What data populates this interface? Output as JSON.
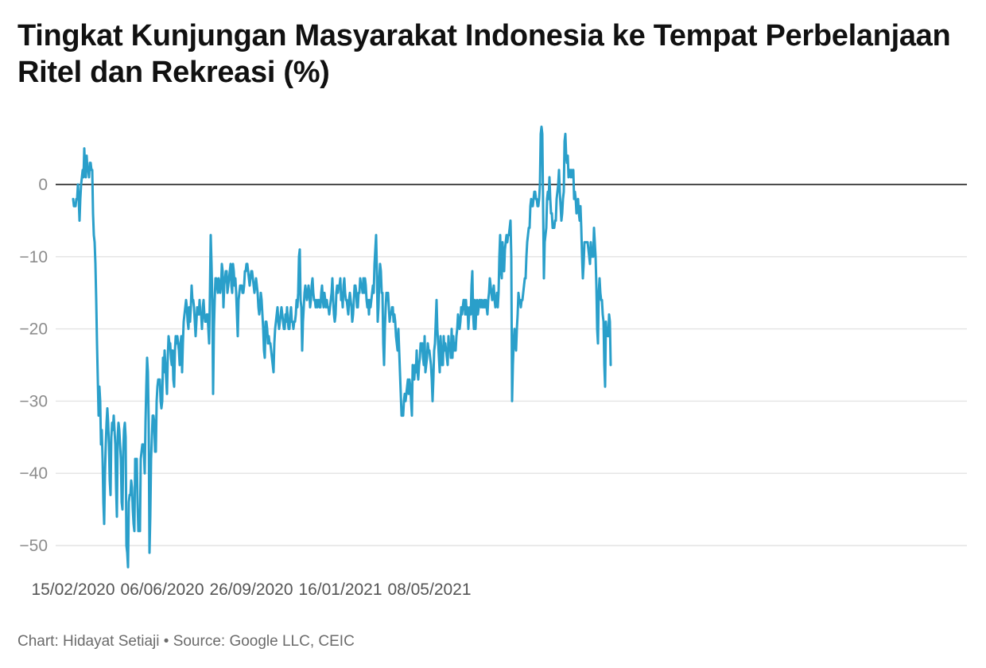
{
  "chart_data": {
    "type": "line",
    "title": "Tingkat Kunjungan Masyarakat Indonesia ke Tempat Perbelanjaan Ritel dan Rekreasi (%)",
    "start_date": "2020-02-15",
    "ylim": [
      -53,
      8
    ],
    "y_ticks": [
      0,
      -10,
      -20,
      -30,
      -40,
      -50
    ],
    "y_tick_labels": [
      "0",
      "−10",
      "−20",
      "−30",
      "−40",
      "−50"
    ],
    "x_tick_labels": [
      "15/02/2020",
      "06/06/2020",
      "26/09/2020",
      "16/01/2021",
      "08/05/2021"
    ],
    "x_tick_days": [
      0,
      112,
      224,
      336,
      448
    ],
    "grid": true,
    "color": "#2a9fca",
    "series": [
      {
        "values": [
          -2,
          -3,
          -3,
          -3,
          -2,
          -2,
          0,
          -2,
          -5,
          -2,
          0,
          1,
          2,
          1,
          5,
          2,
          1,
          4,
          2,
          2,
          1,
          3,
          3,
          2,
          2,
          -4,
          -7,
          -8,
          -11,
          -16,
          -22,
          -27,
          -32,
          -28,
          -30,
          -36,
          -34,
          -38,
          -44,
          -47,
          -40,
          -36,
          -33,
          -31,
          -33,
          -36,
          -41,
          -43,
          -35,
          -33,
          -34,
          -32,
          -34,
          -36,
          -42,
          -46,
          -35,
          -33,
          -34,
          -36,
          -38,
          -44,
          -45,
          -37,
          -34,
          -33,
          -35,
          -50,
          -51,
          -53,
          -44,
          -43,
          -43,
          -41,
          -42,
          -45,
          -47,
          -48,
          -38,
          -39,
          -38,
          -44,
          -48,
          -47,
          -48,
          -38,
          -37,
          -36,
          -36,
          -37,
          -40,
          -33,
          -28,
          -24,
          -26,
          -33,
          -51,
          -46,
          -38,
          -35,
          -32,
          -32,
          -33,
          -37,
          -37,
          -30,
          -28,
          -27,
          -27,
          -27,
          -30,
          -31,
          -30,
          -24,
          -26,
          -23,
          -25,
          -27,
          -29,
          -24,
          -21,
          -22,
          -22,
          -24,
          -25,
          -23,
          -27,
          -28,
          -23,
          -21,
          -22,
          -21,
          -22,
          -23,
          -25,
          -22,
          -21,
          -26,
          -22,
          -19,
          -18,
          -17,
          -16,
          -17,
          -19,
          -20,
          -17,
          -19,
          -17,
          -14,
          -16,
          -16,
          -17,
          -19,
          -21,
          -19,
          -17,
          -18,
          -18,
          -16,
          -18,
          -18,
          -20,
          -17,
          -16,
          -18,
          -19,
          -19,
          -18,
          -18,
          -20,
          -22,
          -15,
          -7,
          -11,
          -16,
          -29,
          -20,
          -16,
          -13,
          -13,
          -14,
          -15,
          -13,
          -14,
          -15,
          -14,
          -11,
          -12,
          -17,
          -14,
          -13,
          -12,
          -12,
          -15,
          -14,
          -13,
          -12,
          -11,
          -14,
          -15,
          -11,
          -12,
          -14,
          -13,
          -15,
          -18,
          -21,
          -16,
          -15,
          -14,
          -14,
          -14,
          -15,
          -15,
          -14,
          -12,
          -12,
          -11,
          -11,
          -12,
          -13,
          -14,
          -13,
          -12,
          -12,
          -13,
          -14,
          -15,
          -14,
          -13,
          -14,
          -15,
          -17,
          -18,
          -17,
          -15,
          -16,
          -18,
          -20,
          -23,
          -24,
          -19,
          -19,
          -20,
          -22,
          -21,
          -22,
          -22,
          -23,
          -24,
          -25,
          -26,
          -22,
          -20,
          -19,
          -18,
          -17,
          -19,
          -20,
          -19,
          -18,
          -17,
          -18,
          -19,
          -20,
          -20,
          -18,
          -19,
          -17,
          -19,
          -20,
          -20,
          -18,
          -17,
          -19,
          -19,
          -20,
          -19,
          -19,
          -18,
          -16,
          -17,
          -15,
          -10,
          -9,
          -16,
          -17,
          -23,
          -19,
          -17,
          -15,
          -14,
          -15,
          -16,
          -15,
          -14,
          -15,
          -17,
          -16,
          -14,
          -13,
          -15,
          -16,
          -16,
          -17,
          -16,
          -17,
          -16,
          -16,
          -17,
          -17,
          -15,
          -14,
          -16,
          -17,
          -15,
          -16,
          -17,
          -16,
          -17,
          -17,
          -18,
          -17,
          -16,
          -15,
          -13,
          -16,
          -18,
          -19,
          -18,
          -15,
          -14,
          -15,
          -14,
          -14,
          -13,
          -16,
          -15,
          -17,
          -14,
          -13,
          -15,
          -16,
          -16,
          -17,
          -18,
          -16,
          -15,
          -16,
          -17,
          -19,
          -18,
          -16,
          -14,
          -14,
          -15,
          -17,
          -17,
          -15,
          -15,
          -13,
          -14,
          -14,
          -15,
          -13,
          -15,
          -13,
          -14,
          -16,
          -17,
          -16,
          -18,
          -16,
          -17,
          -16,
          -15,
          -14,
          -15,
          -11,
          -9,
          -7,
          -12,
          -19,
          -17,
          -13,
          -11,
          -12,
          -15,
          -15,
          -22,
          -25,
          -20,
          -17,
          -15,
          -16,
          -15,
          -17,
          -19,
          -18,
          -18,
          -17,
          -17,
          -19,
          -18,
          -19,
          -21,
          -22,
          -23,
          -20,
          -23,
          -26,
          -29,
          -32,
          -32,
          -32,
          -30,
          -29,
          -30,
          -29,
          -28,
          -27,
          -29,
          -27,
          -28,
          -30,
          -32,
          -25,
          -26,
          -27,
          -25,
          -26,
          -23,
          -26,
          -27,
          -25,
          -24,
          -22,
          -23,
          -22,
          -24,
          -25,
          -21,
          -26,
          -25,
          -24,
          -22,
          -23,
          -23,
          -24,
          -25,
          -27,
          -30,
          -27,
          -23,
          -22,
          -19,
          -16,
          -20,
          -22,
          -24,
          -26,
          -21,
          -23,
          -25,
          -25,
          -21,
          -23,
          -22,
          -23,
          -24,
          -25,
          -21,
          -23,
          -22,
          -24,
          -20,
          -24,
          -21,
          -23,
          -22,
          -23,
          -21,
          -20,
          -18,
          -19,
          -20,
          -19,
          -17,
          -18,
          -17,
          -16,
          -16,
          -18,
          -16,
          -18,
          -17,
          -20,
          -18,
          -17,
          -18,
          -14,
          -12,
          -18,
          -20,
          -16,
          -20,
          -17,
          -16,
          -18,
          -17,
          -16,
          -16,
          -17,
          -16,
          -17,
          -17,
          -16,
          -17,
          -16,
          -17,
          -18,
          -16,
          -15,
          -13,
          -14,
          -15,
          -16,
          -15,
          -14,
          -16,
          -17,
          -16,
          -15,
          -17,
          -15,
          -10,
          -7,
          -12,
          -13,
          -8,
          -10,
          -12,
          -9,
          -8,
          -7,
          -8,
          -7,
          -7,
          -6,
          -5,
          -10,
          -30,
          -25,
          -22,
          -20,
          -22,
          -23,
          -20,
          -18,
          -15,
          -16,
          -16,
          -17,
          -16,
          -16,
          -15,
          -14,
          -13,
          -13,
          -10,
          -8,
          -7,
          -6,
          -6,
          -3,
          -2,
          -3,
          -3,
          -2,
          -1,
          -1,
          -2,
          -2,
          -3,
          -3,
          -2,
          0,
          7,
          8,
          7,
          -3,
          -13,
          -8,
          -7,
          -6,
          -2,
          -1,
          -2,
          1,
          -2,
          -4,
          -4,
          -6,
          -6,
          -6,
          -5,
          -5,
          -2,
          -1,
          0,
          2,
          -1,
          -3,
          -5,
          -4,
          -2,
          -1,
          6,
          7,
          4,
          3,
          4,
          1,
          2,
          2,
          1,
          2,
          1,
          2,
          -2,
          -1,
          -2,
          -4,
          -3,
          -2,
          -4,
          -5,
          -3,
          -6,
          -10,
          -13,
          -11,
          -8,
          -8,
          -8,
          -8,
          -8,
          -9,
          -10,
          -11,
          -8,
          -10,
          -10,
          -10,
          -6,
          -8,
          -10,
          -14,
          -20,
          -22,
          -15,
          -13,
          -15,
          -16,
          -16,
          -18,
          -19,
          -25,
          -28,
          -19,
          -21,
          -20,
          -21,
          -18,
          -19,
          -25
        ]
      }
    ]
  },
  "credit": {
    "label": "Chart: Hidayat Setiaji",
    "separator": " • ",
    "source": "Source: Google LLC, CEIC"
  }
}
